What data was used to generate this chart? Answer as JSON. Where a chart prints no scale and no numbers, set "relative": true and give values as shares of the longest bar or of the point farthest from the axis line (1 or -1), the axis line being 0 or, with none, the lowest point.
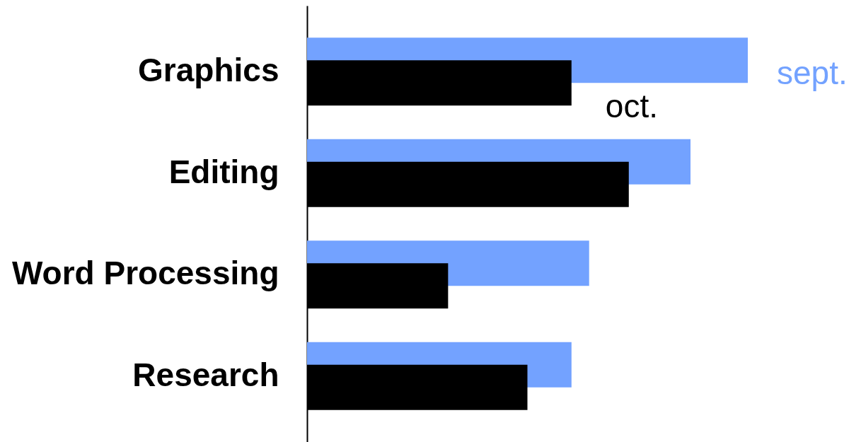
{
  "chart_data": {
    "type": "bar",
    "orientation": "horizontal",
    "relative": true,
    "categories": [
      "Graphics",
      "Editing",
      "Word Processing",
      "Research"
    ],
    "series": [
      {
        "name": "sept.",
        "color": "#73a2ff",
        "values": [
          1,
          0.87,
          0.64,
          0.6
        ]
      },
      {
        "name": "oct.",
        "color": "#000000",
        "values": [
          0.6,
          0.73,
          0.32,
          0.5
        ]
      }
    ]
  }
}
